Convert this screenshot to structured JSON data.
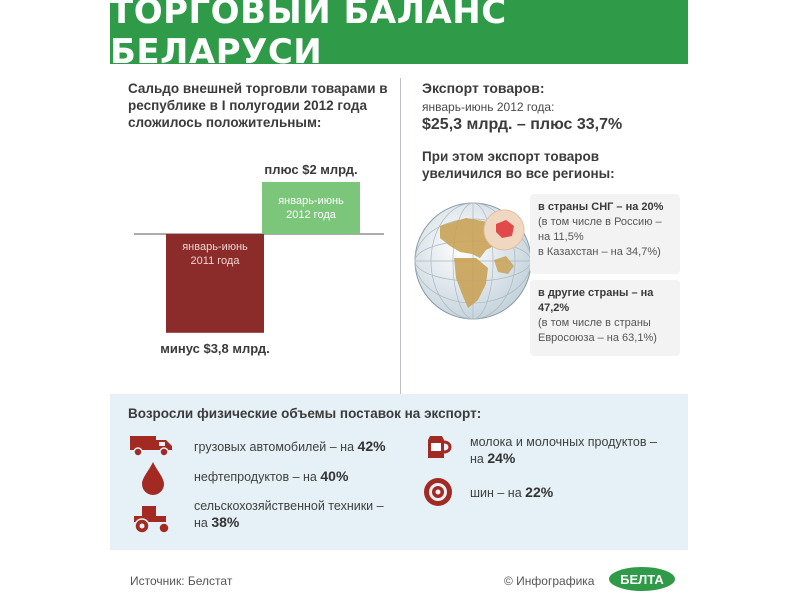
{
  "header": {
    "title": "ТОРГОВЫЙ БАЛАНС БЕЛАРУСИ"
  },
  "balance": {
    "text": "Сальдо внешней торговли товарами в республике в I полугодии 2012 года сложилось положительным:"
  },
  "chart_data": {
    "type": "bar",
    "categories": [
      "январь-июнь 2011 года",
      "январь-июнь 2012 года"
    ],
    "values": [
      -3.8,
      2.0
    ],
    "value_labels": [
      "минус $3,8 млрд.",
      "плюс $2 млрд."
    ],
    "colors": [
      "#8b2c2a",
      "#7cc67c"
    ],
    "ylim": [
      -3.8,
      2.0
    ],
    "grid": false,
    "xlabel": "",
    "ylabel": "",
    "title": ""
  },
  "export": {
    "title": "Экспорт товаров:",
    "period": "январь-июнь 2012 года:",
    "value": "$25,3 млрд. – плюс 33,7%",
    "regions_text": "При этом экспорт товаров увеличился во все регионы:",
    "cis": {
      "headline": "в страны СНГ – на 20%",
      "detail_1": "(в том числе в Россию –",
      "detail_2": "на 11,5%",
      "detail_3": "в Казахстан – на 34,7%)"
    },
    "other": {
      "headline_1": "в другие страны – на",
      "headline_2": "47,2%",
      "detail_1": "(в том числе в страны",
      "detail_2": "Евросоюза – на 63,1%)"
    }
  },
  "volumes": {
    "title": "Возросли физические объемы поставок на экспорт:",
    "items": [
      {
        "icon": "truck-icon",
        "label": "грузовых автомобилей – на",
        "value": "42%"
      },
      {
        "icon": "oil-drop-icon",
        "label": "нефтепродуктов – на",
        "value": "40%"
      },
      {
        "icon": "tractor-icon",
        "label_1": "сельскохозяйственной техники –",
        "label_2": "на",
        "value": "38%"
      },
      {
        "icon": "milk-jug-icon",
        "label_1": "молока и молочных продуктов –",
        "label_2": "на",
        "value": "24%"
      },
      {
        "icon": "tire-icon",
        "label": "шин – на",
        "value": "22%"
      }
    ]
  },
  "footer": {
    "source": "Источник: Белстат",
    "credit": "© Инфографика",
    "logo_text": "БЕЛТА"
  },
  "colors": {
    "header_green": "#2f9a48",
    "deficit_red": "#8b2c2a",
    "surplus_green": "#7cc67c",
    "icon_red": "#a32a22",
    "volumes_bg": "#e5f1f6"
  }
}
